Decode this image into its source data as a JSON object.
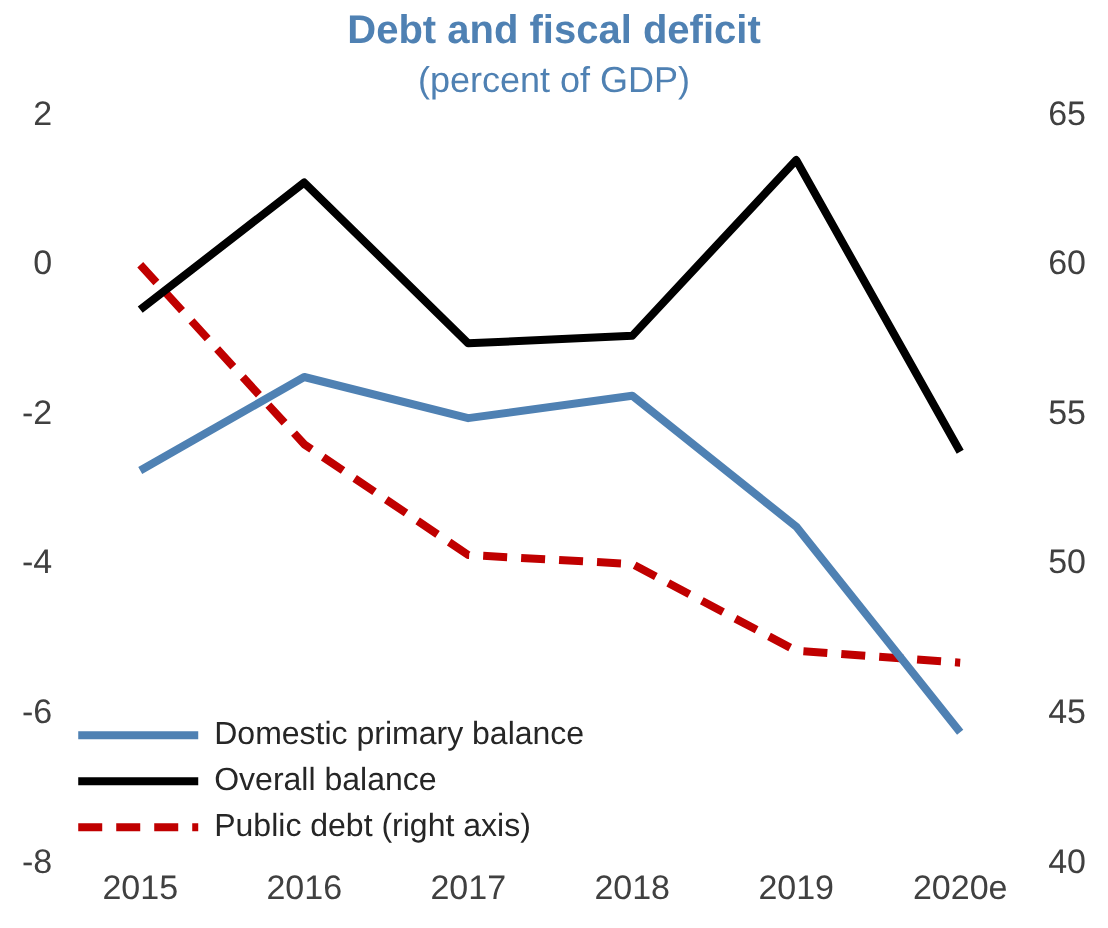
{
  "chart_data": {
    "type": "line",
    "title": "Debt and fiscal deficit",
    "subtitle": "(percent of GDP)",
    "categories": [
      "2015",
      "2016",
      "2017",
      "2018",
      "2019",
      "2020e"
    ],
    "series": [
      {
        "name": "Domestic primary balance",
        "color": "#4f81b3",
        "values": [
          -2.75,
          -1.5,
          -2.05,
          -1.75,
          -3.5,
          -6.25
        ]
      },
      {
        "name": "Overall balance",
        "color": "#000000",
        "values": [
          -0.6,
          1.1,
          -1.05,
          -0.95,
          1.4,
          -2.5
        ]
      },
      {
        "name": "Public debt (right axis)",
        "color": "#c00000",
        "axis": "y2",
        "line_style": "dashed",
        "values": [
          60,
          54,
          50.3,
          50,
          47.1,
          46.7
        ]
      }
    ],
    "ylim": [
      -8,
      2
    ],
    "yticks": [
      -8,
      -6,
      -4,
      -2,
      0,
      2
    ],
    "y2lim": [
      40,
      65
    ],
    "y2ticks": [
      40,
      45,
      50,
      55,
      60,
      65
    ],
    "grid": false,
    "legend": "bottom left",
    "marker": "none",
    "line_style": "solid"
  }
}
